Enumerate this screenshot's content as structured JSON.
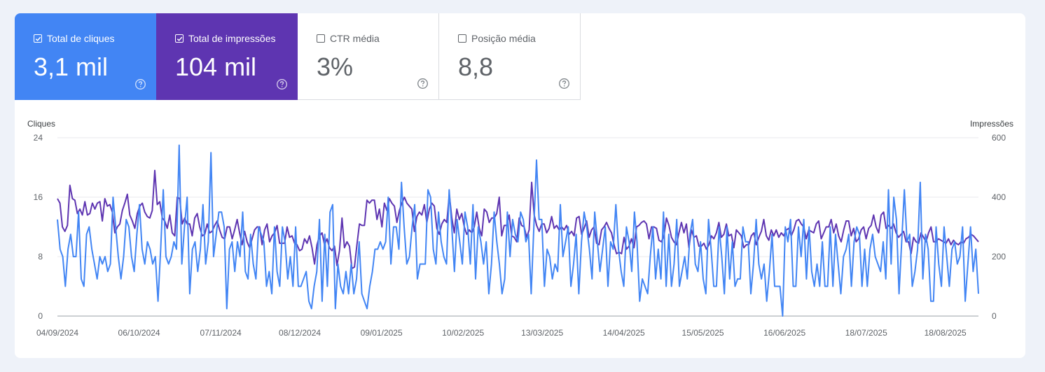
{
  "metrics": {
    "clicks": {
      "label": "Total de cliques",
      "value": "3,1 mil",
      "checked": true
    },
    "impressions": {
      "label": "Total de impressões",
      "value": "104 mil",
      "checked": true
    },
    "ctr": {
      "label": "CTR média",
      "value": "3%",
      "checked": false
    },
    "position": {
      "label": "Posição média",
      "value": "8,8",
      "checked": false
    }
  },
  "icons": {
    "help": "help-circle-icon",
    "checkbox": "check-icon"
  },
  "colors": {
    "clicks": "#4285f4",
    "impressions": "#5e35b1",
    "grid": "#e8eaed",
    "axis": "#5f6368"
  },
  "chart_data": {
    "type": "line",
    "left_axis_title": "Cliques",
    "right_axis_title": "Impressões",
    "y_left_ticks": [
      "24",
      "16",
      "8",
      "0"
    ],
    "y_right_ticks": [
      "600",
      "400",
      "200",
      "0"
    ],
    "ylim_left": [
      0,
      24
    ],
    "ylim_right": [
      0,
      600
    ],
    "x_ticks": [
      "04/09/2024",
      "06/10/2024",
      "07/11/2024",
      "08/12/2024",
      "09/01/2025",
      "10/02/2025",
      "13/03/2025",
      "14/04/2025",
      "15/05/2025",
      "16/06/2025",
      "18/07/2025",
      "18/08/2025"
    ],
    "x_range": [
      "04/09/2024",
      "31/08/2025"
    ],
    "grid": true,
    "series": [
      {
        "name": "Cliques",
        "axis": "left",
        "values": [
          13,
          9,
          8,
          4,
          9,
          11,
          8,
          8,
          14,
          5,
          4,
          11,
          12,
          9,
          7,
          5,
          8,
          7,
          8,
          6,
          7,
          16,
          12,
          8,
          5,
          8,
          13,
          12,
          8,
          6,
          11,
          15,
          9,
          7,
          10,
          9,
          7,
          8,
          2,
          9,
          17,
          8,
          7,
          8,
          10,
          9,
          23,
          7,
          12,
          16,
          3,
          9,
          10,
          6,
          9,
          15,
          7,
          10,
          22,
          8,
          11,
          14,
          14,
          12,
          1,
          9,
          10,
          6,
          10,
          8,
          14,
          6,
          5,
          11,
          7,
          5,
          12,
          11,
          10,
          4,
          6,
          3,
          12,
          6,
          4,
          12,
          10,
          5,
          8,
          4,
          12,
          4,
          4,
          5,
          6,
          2,
          1,
          4,
          6,
          13,
          2,
          11,
          4,
          14,
          15,
          1,
          7,
          4,
          3,
          6,
          3,
          7,
          3,
          5,
          10,
          3,
          2,
          1,
          4,
          6,
          9,
          9,
          10,
          9,
          10,
          16,
          7,
          12,
          12,
          9,
          18,
          12,
          7,
          8,
          12,
          15,
          5,
          7,
          7,
          7,
          17,
          16,
          9,
          7,
          14,
          10,
          8,
          7,
          17,
          12,
          6,
          13,
          10,
          7,
          14,
          12,
          7,
          15,
          5,
          12,
          10,
          7,
          10,
          3,
          7,
          14,
          10,
          7,
          3,
          5,
          14,
          8,
          13,
          11,
          10,
          14,
          13,
          10,
          11,
          3,
          12,
          21,
          13,
          13,
          4,
          9,
          8,
          5,
          7,
          6,
          15,
          8,
          10,
          12,
          4,
          7,
          11,
          3,
          10,
          14,
          12,
          9,
          5,
          14,
          10,
          6,
          9,
          12,
          4,
          10,
          9,
          15,
          9,
          6,
          4,
          12,
          10,
          6,
          14,
          10,
          2,
          5,
          4,
          3,
          8,
          12,
          5,
          9,
          5,
          14,
          4,
          11,
          4,
          7,
          13,
          4,
          6,
          8,
          5,
          11,
          13,
          7,
          6,
          10,
          5,
          3,
          13,
          9,
          4,
          4,
          12,
          8,
          3,
          12,
          5,
          10,
          4,
          5,
          5,
          12,
          10,
          10,
          3,
          7,
          13,
          7,
          5,
          7,
          2,
          6,
          11,
          4,
          4,
          4,
          0,
          12,
          10,
          13,
          4,
          4,
          12,
          8,
          13,
          5,
          12,
          6,
          4,
          7,
          4,
          10,
          4,
          4,
          12,
          4,
          11,
          7,
          3,
          8,
          9,
          11,
          4,
          10,
          12,
          11,
          4,
          9,
          4,
          9,
          11,
          8,
          7,
          6,
          10,
          5,
          17,
          7,
          16,
          13,
          3,
          10,
          17,
          10,
          11,
          4,
          6,
          9,
          18,
          5,
          11,
          9,
          2,
          2,
          12,
          7,
          4,
          12,
          8,
          4,
          9,
          10,
          7,
          8,
          12,
          2,
          7,
          12,
          6,
          9,
          3
        ]
      },
      {
        "name": "Impressões",
        "axis": "right",
        "values": [
          395,
          380,
          300,
          285,
          305,
          440,
          395,
          390,
          345,
          360,
          340,
          385,
          340,
          345,
          380,
          360,
          380,
          385,
          320,
          395,
          370,
          375,
          350,
          280,
          300,
          310,
          355,
          380,
          410,
          340,
          320,
          295,
          345,
          370,
          380,
          350,
          335,
          330,
          355,
          490,
          375,
          385,
          330,
          320,
          295,
          340,
          280,
          270,
          400,
          395,
          310,
          330,
          310,
          310,
          270,
          330,
          345,
          300,
          270,
          275,
          310,
          280,
          285,
          305,
          320,
          290,
          265,
          260,
          300,
          300,
          260,
          290,
          325,
          280,
          240,
          285,
          250,
          230,
          260,
          290,
          300,
          300,
          240,
          290,
          310,
          250,
          270,
          280,
          305,
          245,
          245,
          245,
          300,
          265,
          270,
          245,
          240,
          220,
          225,
          260,
          245,
          270,
          230,
          175,
          240,
          270,
          280,
          240,
          260,
          230,
          220,
          235,
          170,
          220,
          330,
          230,
          250,
          235,
          160,
          165,
          240,
          310,
          305,
          305,
          390,
          380,
          390,
          390,
          325,
          360,
          300,
          380,
          355,
          395,
          380,
          370,
          315,
          355,
          380,
          400,
          380,
          370,
          360,
          285,
          335,
          350,
          340,
          375,
          315,
          360,
          380,
          370,
          295,
          275,
          310,
          325,
          315,
          410,
          330,
          280,
          360,
          325,
          345,
          300,
          275,
          290,
          280,
          300,
          350,
          295,
          270,
          360,
          350,
          315,
          330,
          330,
          345,
          400,
          270,
          305,
          305,
          340,
          270,
          265,
          250,
          330,
          305,
          300,
          265,
          290,
          450,
          340,
          305,
          285,
          310,
          310,
          280,
          295,
          335,
          295,
          305,
          290,
          300,
          290,
          305,
          275,
          285,
          270,
          330,
          335,
          275,
          295,
          320,
          265,
          290,
          300,
          245,
          240,
          290,
          300,
          315,
          295,
          280,
          240,
          210,
          215,
          210,
          265,
          225,
          235,
          260,
          230,
          300,
          305,
          315,
          320,
          310,
          260,
          300,
          300,
          295,
          255,
          250,
          270,
          330,
          305,
          265,
          250,
          240,
          280,
          315,
          280,
          310,
          230,
          290,
          265,
          270,
          235,
          235,
          245,
          225,
          240,
          270,
          260,
          280,
          315,
          265,
          275,
          310,
          270,
          275,
          230,
          290,
          280,
          270,
          230,
          240,
          240,
          270,
          280,
          240,
          265,
          285,
          325,
          270,
          255,
          290,
          270,
          290,
          265,
          280,
          270,
          290,
          295,
          270,
          290,
          320,
          325,
          310,
          300,
          260,
          290,
          285,
          280,
          310,
          320,
          260,
          280,
          300,
          300,
          325,
          280,
          310,
          270,
          250,
          290,
          320,
          320,
          270,
          295,
          250,
          260,
          290,
          300,
          260,
          295,
          305,
          340,
          300,
          280,
          340,
          350,
          295,
          305,
          295,
          310,
          280,
          265,
          275,
          285,
          250,
          250,
          210,
          265,
          250,
          245,
          280,
          265,
          250,
          280,
          300,
          250,
          250,
          260,
          255,
          250,
          245,
          260,
          240,
          255,
          245,
          240,
          250,
          245,
          260,
          265,
          275,
          270,
          260,
          250
        ]
      }
    ]
  }
}
